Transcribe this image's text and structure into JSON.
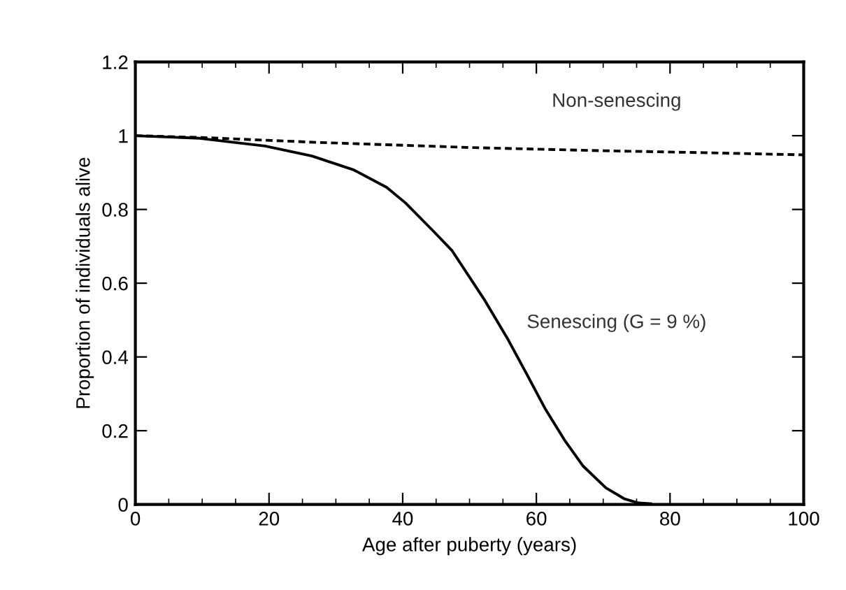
{
  "chart_data": {
    "type": "line",
    "xlabel": "Age after puberty (years)",
    "ylabel": "Proportion of individuals alive",
    "xlim": [
      0,
      100
    ],
    "ylim": [
      0,
      1.2
    ],
    "xticks": [
      0,
      20,
      40,
      60,
      80,
      100
    ],
    "yticks": [
      0,
      0.2,
      0.4,
      0.6,
      0.8,
      1,
      1.2
    ],
    "grid": false,
    "legend": false,
    "marker": "none",
    "annotations": [
      "Non-senescing",
      "Senescing (G = 9 %)"
    ],
    "series": [
      {
        "color": "#000000",
        "line_style": "dotted",
        "x": [
          0,
          10,
          27,
          50,
          68,
          85,
          100
        ],
        "values": [
          1.0,
          0.995,
          0.982,
          0.968,
          0.96,
          0.954,
          0.948
        ]
      },
      {
        "color": "#000000",
        "line_style": "solid",
        "x": [
          0,
          9.6,
          19.4,
          26.4,
          32.7,
          37.6,
          40.4,
          44.6,
          47.4,
          52.3,
          55.8,
          58.6,
          61.4,
          64.2,
          67.0,
          70.4,
          73.2,
          75.3,
          77.1
        ],
        "values": [
          1.0,
          0.993,
          0.972,
          0.945,
          0.907,
          0.86,
          0.818,
          0.741,
          0.688,
          0.553,
          0.446,
          0.352,
          0.257,
          0.175,
          0.104,
          0.045,
          0.015,
          0.004,
          0.002
        ]
      }
    ]
  }
}
